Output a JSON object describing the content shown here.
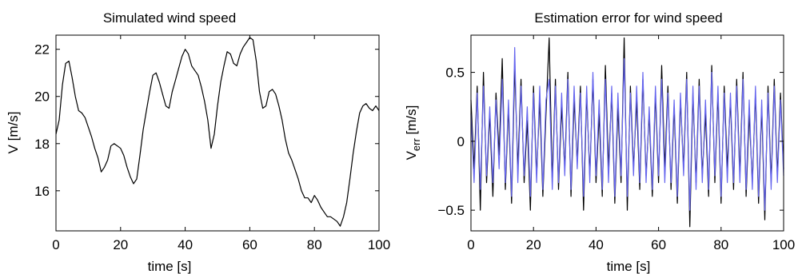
{
  "chart_data": [
    {
      "type": "line",
      "title": "Simulated wind speed",
      "xlabel": "time [s]",
      "ylabel": "V [m/s]",
      "xlim": [
        0,
        100
      ],
      "ylim": [
        14.3,
        22.6
      ],
      "xticks": [
        0,
        20,
        40,
        60,
        80,
        100
      ],
      "yticks": [
        16,
        18,
        20,
        22
      ],
      "grid": false,
      "series": [
        {
          "color": "#000000",
          "x": [
            0,
            1,
            2,
            3,
            4,
            5,
            6,
            7,
            8,
            9,
            10,
            11,
            12,
            13,
            14,
            15,
            16,
            17,
            18,
            19,
            20,
            21,
            22,
            23,
            24,
            25,
            26,
            27,
            28,
            29,
            30,
            31,
            32,
            33,
            34,
            35,
            36,
            37,
            38,
            39,
            40,
            41,
            42,
            43,
            44,
            45,
            46,
            47,
            48,
            49,
            50,
            51,
            52,
            53,
            54,
            55,
            56,
            57,
            58,
            59,
            60,
            61,
            62,
            63,
            64,
            65,
            66,
            67,
            68,
            69,
            70,
            71,
            72,
            73,
            74,
            75,
            76,
            77,
            78,
            79,
            80,
            81,
            82,
            83,
            84,
            85,
            86,
            87,
            88,
            89,
            90,
            91,
            92,
            93,
            94,
            95,
            96,
            97,
            98,
            99,
            100
          ],
          "values": [
            18.4,
            19.0,
            20.5,
            21.4,
            21.5,
            20.8,
            20.0,
            19.4,
            19.3,
            19.1,
            18.7,
            18.3,
            17.8,
            17.4,
            16.8,
            17.0,
            17.3,
            17.9,
            18.0,
            17.9,
            17.8,
            17.5,
            17.0,
            16.6,
            16.3,
            16.5,
            17.5,
            18.6,
            19.4,
            20.2,
            20.9,
            21.0,
            20.6,
            20.1,
            19.6,
            19.5,
            20.2,
            20.7,
            21.2,
            21.7,
            22.0,
            21.8,
            21.3,
            21.1,
            20.9,
            20.4,
            19.8,
            19.0,
            17.8,
            18.4,
            19.6,
            20.6,
            21.3,
            21.9,
            21.8,
            21.4,
            21.3,
            21.8,
            22.1,
            22.3,
            22.5,
            22.4,
            21.5,
            20.2,
            19.5,
            19.6,
            20.2,
            20.3,
            20.1,
            19.6,
            19.0,
            18.2,
            17.6,
            17.3,
            16.9,
            16.5,
            16.0,
            15.7,
            15.7,
            15.5,
            15.8,
            15.6,
            15.3,
            15.1,
            14.9,
            14.9,
            14.8,
            14.7,
            14.5,
            14.9,
            15.5,
            16.5,
            17.6,
            18.5,
            19.3,
            19.6,
            19.7,
            19.5,
            19.4,
            19.6,
            19.4
          ]
        }
      ]
    },
    {
      "type": "line",
      "title": "Estimation error for wind speed",
      "xlabel": "time [s]",
      "ylabel": "V",
      "ylabel_sub": "err",
      "ylabel_unit": " [m/s]",
      "xlim": [
        0,
        100
      ],
      "ylim": [
        -0.65,
        0.77
      ],
      "xticks": [
        0,
        20,
        40,
        60,
        80,
        100
      ],
      "yticks": [
        -0.5,
        0,
        0.5
      ],
      "grid": false,
      "series": [
        {
          "color": "#000000",
          "x": [
            0,
            1,
            2,
            3,
            4,
            5,
            6,
            7,
            8,
            9,
            10,
            11,
            12,
            13,
            14,
            15,
            16,
            17,
            18,
            19,
            20,
            21,
            22,
            23,
            24,
            25,
            26,
            27,
            28,
            29,
            30,
            31,
            32,
            33,
            34,
            35,
            36,
            37,
            38,
            39,
            40,
            41,
            42,
            43,
            44,
            45,
            46,
            47,
            48,
            49,
            50,
            51,
            52,
            53,
            54,
            55,
            56,
            57,
            58,
            59,
            60,
            61,
            62,
            63,
            64,
            65,
            66,
            67,
            68,
            69,
            70,
            71,
            72,
            73,
            74,
            75,
            76,
            77,
            78,
            79,
            80,
            81,
            82,
            83,
            84,
            85,
            86,
            87,
            88,
            89,
            90,
            91,
            92,
            93,
            94,
            95,
            96,
            97,
            98,
            99,
            100
          ],
          "values": [
            0.3,
            -0.2,
            0.4,
            -0.5,
            0.5,
            -0.3,
            0.2,
            -0.4,
            0.35,
            -0.1,
            0.6,
            -0.35,
            0.25,
            -0.45,
            0.55,
            -0.2,
            0.45,
            -0.3,
            0.15,
            -0.5,
            0.4,
            -0.25,
            0.3,
            -0.4,
            0.2,
            0.75,
            -0.3,
            0.45,
            -0.35,
            0.25,
            -0.2,
            0.5,
            -0.4,
            0.3,
            -0.15,
            0.4,
            -0.5,
            0.35,
            -0.25,
            0.45,
            -0.3,
            0.2,
            -0.4,
            0.55,
            -0.2,
            0.35,
            -0.45,
            0.25,
            -0.3,
            0.75,
            -0.5,
            0.4,
            -0.2,
            0.3,
            -0.35,
            0.45,
            -0.25,
            0.2,
            -0.4,
            0.35,
            -0.3,
            0.55,
            -0.2,
            0.4,
            -0.35,
            0.25,
            -0.45,
            0.3,
            -0.2,
            0.5,
            -0.62,
            0.35,
            -0.3,
            0.45,
            -0.25,
            0.2,
            -0.4,
            0.55,
            -0.3,
            0.35,
            -0.45,
            0.4,
            -0.2,
            0.3,
            -0.35,
            0.45,
            -0.25,
            0.5,
            -0.4,
            0.2,
            -0.3,
            0.35,
            -0.45,
            0.25,
            -0.57,
            0.4,
            -0.3,
            0.45,
            -0.25,
            0.35,
            -0.2
          ]
        },
        {
          "color": "#6666ee",
          "x": [
            0,
            1,
            2,
            3,
            4,
            5,
            6,
            7,
            8,
            9,
            10,
            11,
            12,
            13,
            14,
            15,
            16,
            17,
            18,
            19,
            20,
            21,
            22,
            23,
            24,
            25,
            26,
            27,
            28,
            29,
            30,
            31,
            32,
            33,
            34,
            35,
            36,
            37,
            38,
            39,
            40,
            41,
            42,
            43,
            44,
            45,
            46,
            47,
            48,
            49,
            50,
            51,
            52,
            53,
            54,
            55,
            56,
            57,
            58,
            59,
            60,
            61,
            62,
            63,
            64,
            65,
            66,
            67,
            68,
            69,
            70,
            71,
            72,
            73,
            74,
            75,
            76,
            77,
            78,
            79,
            80,
            81,
            82,
            83,
            84,
            85,
            86,
            87,
            88,
            89,
            90,
            91,
            92,
            93,
            94,
            95,
            96,
            97,
            98,
            99,
            100
          ],
          "values": [
            0.2,
            -0.3,
            0.35,
            -0.35,
            0.4,
            -0.25,
            0.25,
            -0.3,
            0.3,
            -0.2,
            0.45,
            -0.3,
            0.3,
            -0.4,
            0.68,
            -0.3,
            0.4,
            -0.25,
            0.25,
            -0.4,
            0.35,
            -0.3,
            0.4,
            -0.35,
            0.3,
            0.45,
            -0.35,
            0.4,
            -0.3,
            0.35,
            -0.25,
            0.45,
            -0.35,
            0.4,
            -0.2,
            0.35,
            -0.4,
            0.4,
            -0.3,
            0.5,
            -0.25,
            0.3,
            -0.35,
            0.45,
            -0.3,
            0.4,
            -0.4,
            0.35,
            -0.25,
            0.6,
            -0.4,
            0.35,
            -0.25,
            0.4,
            -0.3,
            0.5,
            -0.3,
            0.25,
            -0.35,
            0.4,
            -0.25,
            0.45,
            -0.3,
            0.35,
            -0.3,
            0.3,
            -0.4,
            0.35,
            -0.25,
            0.45,
            -0.5,
            0.4,
            -0.35,
            0.4,
            -0.3,
            0.3,
            -0.35,
            0.5,
            -0.25,
            0.4,
            -0.4,
            0.35,
            -0.3,
            0.35,
            -0.3,
            0.4,
            -0.3,
            0.45,
            -0.35,
            0.3,
            -0.35,
            0.4,
            -0.4,
            0.3,
            -0.5,
            0.35,
            -0.35,
            0.4,
            -0.3,
            0.3,
            -0.25
          ]
        }
      ]
    }
  ]
}
